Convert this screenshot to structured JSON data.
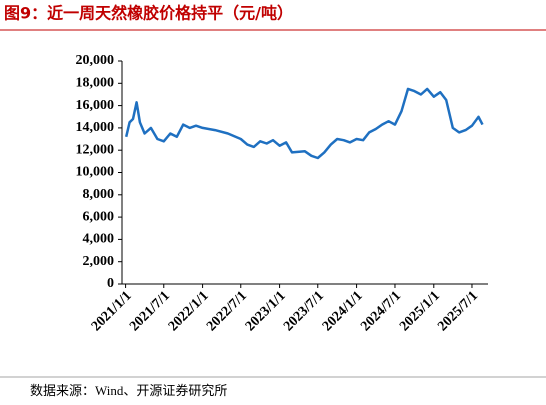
{
  "chart_data": {
    "type": "line",
    "title": "图9：近一周天然橡胶价格持平（元/吨）",
    "source": "数据来源：Wind、开源证券研究所",
    "x": [
      "2021-01-04",
      "2021-01-20",
      "2021-02-05",
      "2021-02-22",
      "2021-03-10",
      "2021-04-01",
      "2021-05-01",
      "2021-06-01",
      "2021-07-01",
      "2021-08-01",
      "2021-09-01",
      "2021-10-01",
      "2021-11-01",
      "2021-12-01",
      "2022-01-01",
      "2022-03-01",
      "2022-05-01",
      "2022-07-01",
      "2022-08-01",
      "2022-09-01",
      "2022-10-01",
      "2022-11-01",
      "2022-12-01",
      "2023-01-01",
      "2023-02-01",
      "2023-03-01",
      "2023-05-01",
      "2023-06-01",
      "2023-07-01",
      "2023-08-01",
      "2023-09-01",
      "2023-10-01",
      "2023-11-01",
      "2023-12-01",
      "2024-01-01",
      "2024-02-01",
      "2024-03-01",
      "2024-04-01",
      "2024-05-01",
      "2024-06-01",
      "2024-07-01",
      "2024-08-01",
      "2024-09-01",
      "2024-10-01",
      "2024-11-01",
      "2024-12-01",
      "2025-01-01",
      "2025-02-01",
      "2025-03-01",
      "2025-04-01",
      "2025-05-01",
      "2025-06-01",
      "2025-07-01",
      "2025-08-01",
      "2025-08-20"
    ],
    "series": [
      {
        "name": "天然橡胶价格",
        "color": "#1f70c1",
        "values": [
          13200,
          14500,
          14800,
          16300,
          14500,
          13500,
          14000,
          13000,
          12800,
          13500,
          13200,
          14300,
          14000,
          14200,
          14000,
          13800,
          13500,
          13000,
          12500,
          12300,
          12800,
          12600,
          12900,
          12400,
          12700,
          11800,
          11900,
          11500,
          11300,
          11800,
          12500,
          13000,
          12900,
          12700,
          13000,
          12900,
          13600,
          13900,
          14300,
          14600,
          14300,
          15500,
          17500,
          17300,
          17000,
          17500,
          16800,
          17200,
          16500,
          14000,
          13600,
          13800,
          14200,
          15000,
          14300
        ]
      }
    ],
    "xlim": [
      "2020-12-15",
      "2025-09-15"
    ],
    "xticks": [
      {
        "value": "2021-01-01",
        "label": "2021/1/1"
      },
      {
        "value": "2021-07-01",
        "label": "2021/7/1"
      },
      {
        "value": "2022-01-01",
        "label": "2022/1/1"
      },
      {
        "value": "2022-07-01",
        "label": "2022/7/1"
      },
      {
        "value": "2023-01-01",
        "label": "2023/1/1"
      },
      {
        "value": "2023-07-01",
        "label": "2023/7/1"
      },
      {
        "value": "2024-01-01",
        "label": "2024/1/1"
      },
      {
        "value": "2024-07-01",
        "label": "2024/7/1"
      },
      {
        "value": "2025-01-01",
        "label": "2025/1/1"
      },
      {
        "value": "2025-07-01",
        "label": "2025/7/1"
      }
    ],
    "ylim": [
      0,
      20000
    ],
    "yticks": [
      0,
      {
        "value": 2000,
        "label": "2,000"
      },
      {
        "value": 4000,
        "label": "4,000"
      },
      {
        "value": 6000,
        "label": "6,000"
      },
      {
        "value": 8000,
        "label": "8,000"
      },
      {
        "value": 10000,
        "label": "10,000"
      },
      {
        "value": 12000,
        "label": "12,000"
      },
      {
        "value": 14000,
        "label": "14,000"
      },
      {
        "value": 16000,
        "label": "16,000"
      },
      {
        "value": 18000,
        "label": "18,000"
      },
      {
        "value": 20000,
        "label": "20,000"
      }
    ]
  }
}
